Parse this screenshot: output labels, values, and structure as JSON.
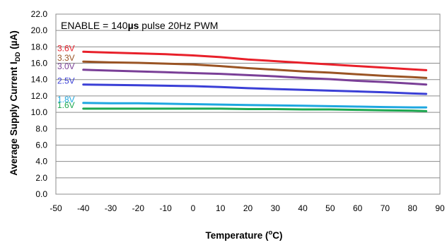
{
  "chart_data": {
    "type": "line",
    "annotation_prefix": "ENABLE = 140",
    "annotation_unit": "µs",
    "annotation_suffix": " pulse 20Hz PWM",
    "xlabel_main": "Temperature (",
    "xlabel_sup": "o",
    "xlabel_end": "C)",
    "ylabel_main": "Average Supply Current I",
    "ylabel_sub": "DD",
    "ylabel_end": " (µA)",
    "xlim": [
      -50,
      90
    ],
    "ylim": [
      0,
      22
    ],
    "x_ticks": [
      "-50",
      "-40",
      "-30",
      "-20",
      "-10",
      "0",
      "10",
      "20",
      "30",
      "40",
      "50",
      "60",
      "70",
      "80",
      "90"
    ],
    "y_ticks": [
      "0.0",
      "2.0",
      "4.0",
      "6.0",
      "8.0",
      "10.0",
      "12.0",
      "14.0",
      "16.0",
      "18.0",
      "20.0",
      "22.0"
    ],
    "grid": true,
    "x": [
      -40,
      -30,
      -20,
      -10,
      0,
      10,
      20,
      30,
      40,
      50,
      60,
      70,
      80,
      85
    ],
    "series": [
      {
        "name": "3.6V",
        "color": "#e8202a",
        "values": [
          17.4,
          17.3,
          17.2,
          17.1,
          16.95,
          16.75,
          16.45,
          16.25,
          16.05,
          15.85,
          15.65,
          15.45,
          15.25,
          15.15
        ]
      },
      {
        "name": "3.3V",
        "color": "#9a5424",
        "values": [
          16.2,
          16.1,
          16.05,
          15.95,
          15.85,
          15.65,
          15.4,
          15.2,
          15.0,
          14.85,
          14.65,
          14.45,
          14.3,
          14.2
        ]
      },
      {
        "name": "3.0V",
        "color": "#7a3f97",
        "values": [
          15.2,
          15.1,
          15.0,
          14.9,
          14.8,
          14.7,
          14.55,
          14.4,
          14.2,
          14.05,
          13.85,
          13.7,
          13.5,
          13.4
        ]
      },
      {
        "name": "2.5V",
        "color": "#3a3fd6",
        "values": [
          13.4,
          13.35,
          13.3,
          13.25,
          13.2,
          13.1,
          12.95,
          12.85,
          12.75,
          12.65,
          12.55,
          12.45,
          12.3,
          12.25
        ]
      },
      {
        "name": "1.8V",
        "color": "#1ea7e0",
        "values": [
          11.15,
          11.1,
          11.1,
          11.05,
          11.0,
          10.95,
          10.9,
          10.85,
          10.8,
          10.75,
          10.7,
          10.65,
          10.6,
          10.6
        ]
      },
      {
        "name": "1.6V",
        "color": "#1ca84f",
        "values": [
          10.45,
          10.45,
          10.45,
          10.45,
          10.45,
          10.45,
          10.4,
          10.4,
          10.35,
          10.35,
          10.3,
          10.25,
          10.2,
          10.15
        ]
      }
    ]
  }
}
